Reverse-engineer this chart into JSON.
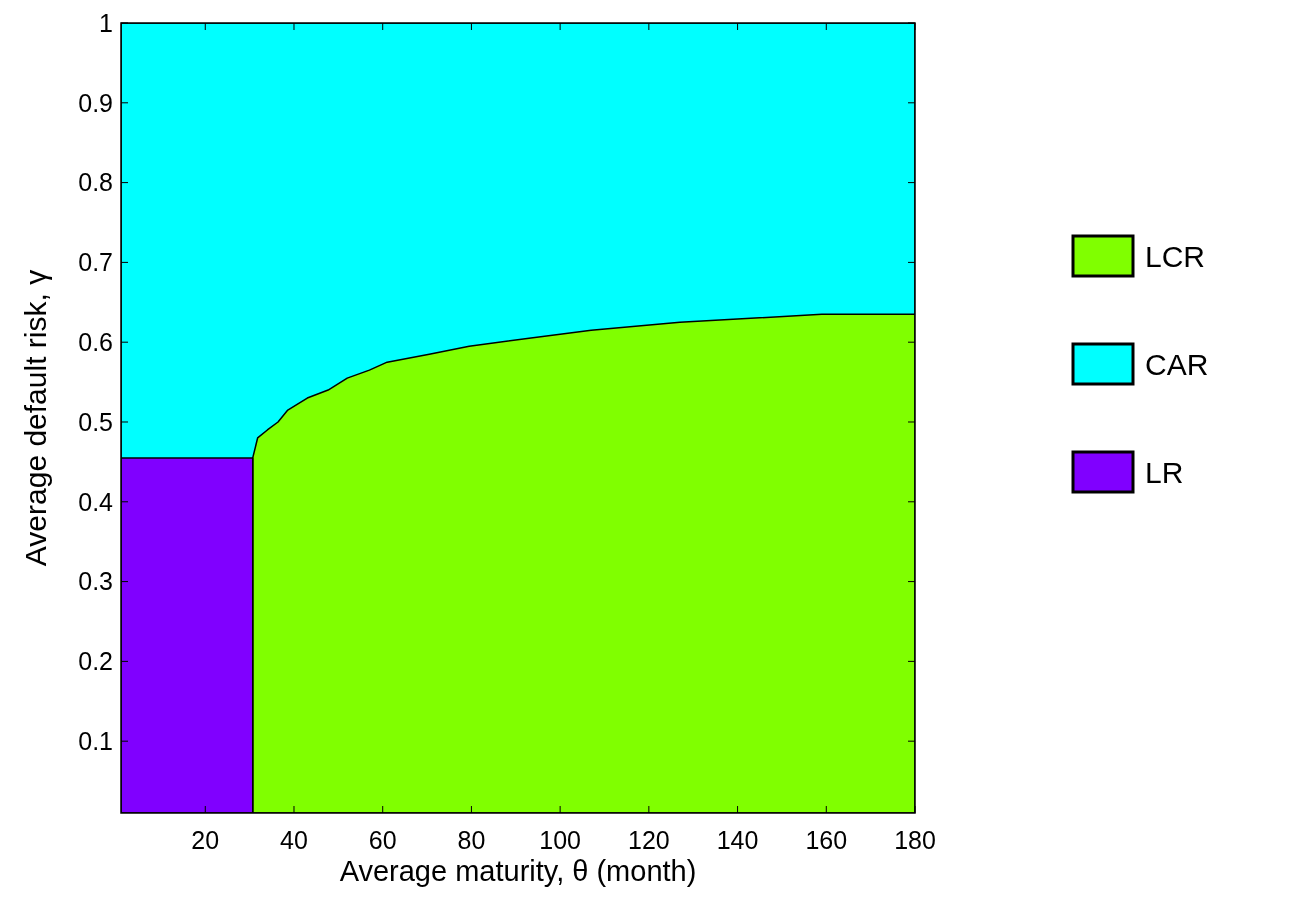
{
  "chart_data": {
    "type": "area",
    "xlabel": "Average maturity, θ (month)",
    "ylabel": "Average default risk, γ",
    "xlim": [
      1,
      180
    ],
    "ylim": [
      0.01,
      1
    ],
    "xticks": [
      20,
      40,
      60,
      80,
      100,
      120,
      140,
      160,
      180
    ],
    "yticks": [
      0.1,
      0.2,
      0.3,
      0.4,
      0.5,
      0.6,
      0.7,
      0.8,
      0.9,
      1
    ],
    "grid": false,
    "legend": "right",
    "series": [
      {
        "name": "LCR",
        "color": "#80ff00",
        "x": [
          30.7,
          31.8,
          34,
          36.4,
          38.6,
          43,
          47.7,
          52,
          57,
          61,
          70.5,
          79.5,
          93,
          107,
          127,
          159,
          180
        ],
        "values": [
          0.455,
          0.48,
          0.49,
          0.5,
          0.515,
          0.53,
          0.54,
          0.555,
          0.565,
          0.575,
          0.585,
          0.595,
          0.605,
          0.615,
          0.625,
          0.635,
          0.635
        ]
      },
      {
        "name": "CAR",
        "color": "#00ffff",
        "x": [
          1,
          180
        ],
        "values": [
          1,
          1
        ]
      },
      {
        "name": "LR",
        "color": "#8000ff",
        "x": [
          1,
          30.7
        ],
        "values": [
          0.455,
          0.455
        ]
      }
    ]
  }
}
